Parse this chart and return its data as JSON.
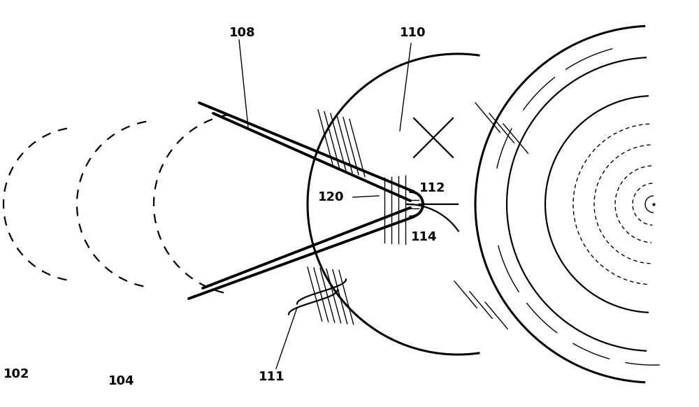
{
  "bg_color": "#ffffff",
  "lc": "#000000",
  "lw_thin": 1.0,
  "lw_med": 1.6,
  "lw_thick": 2.2,
  "lw_heavy": 2.8,
  "fig_w": 10.0,
  "fig_h": 5.82,
  "xlim": [
    0,
    10
  ],
  "ylim": [
    0,
    5.82
  ]
}
